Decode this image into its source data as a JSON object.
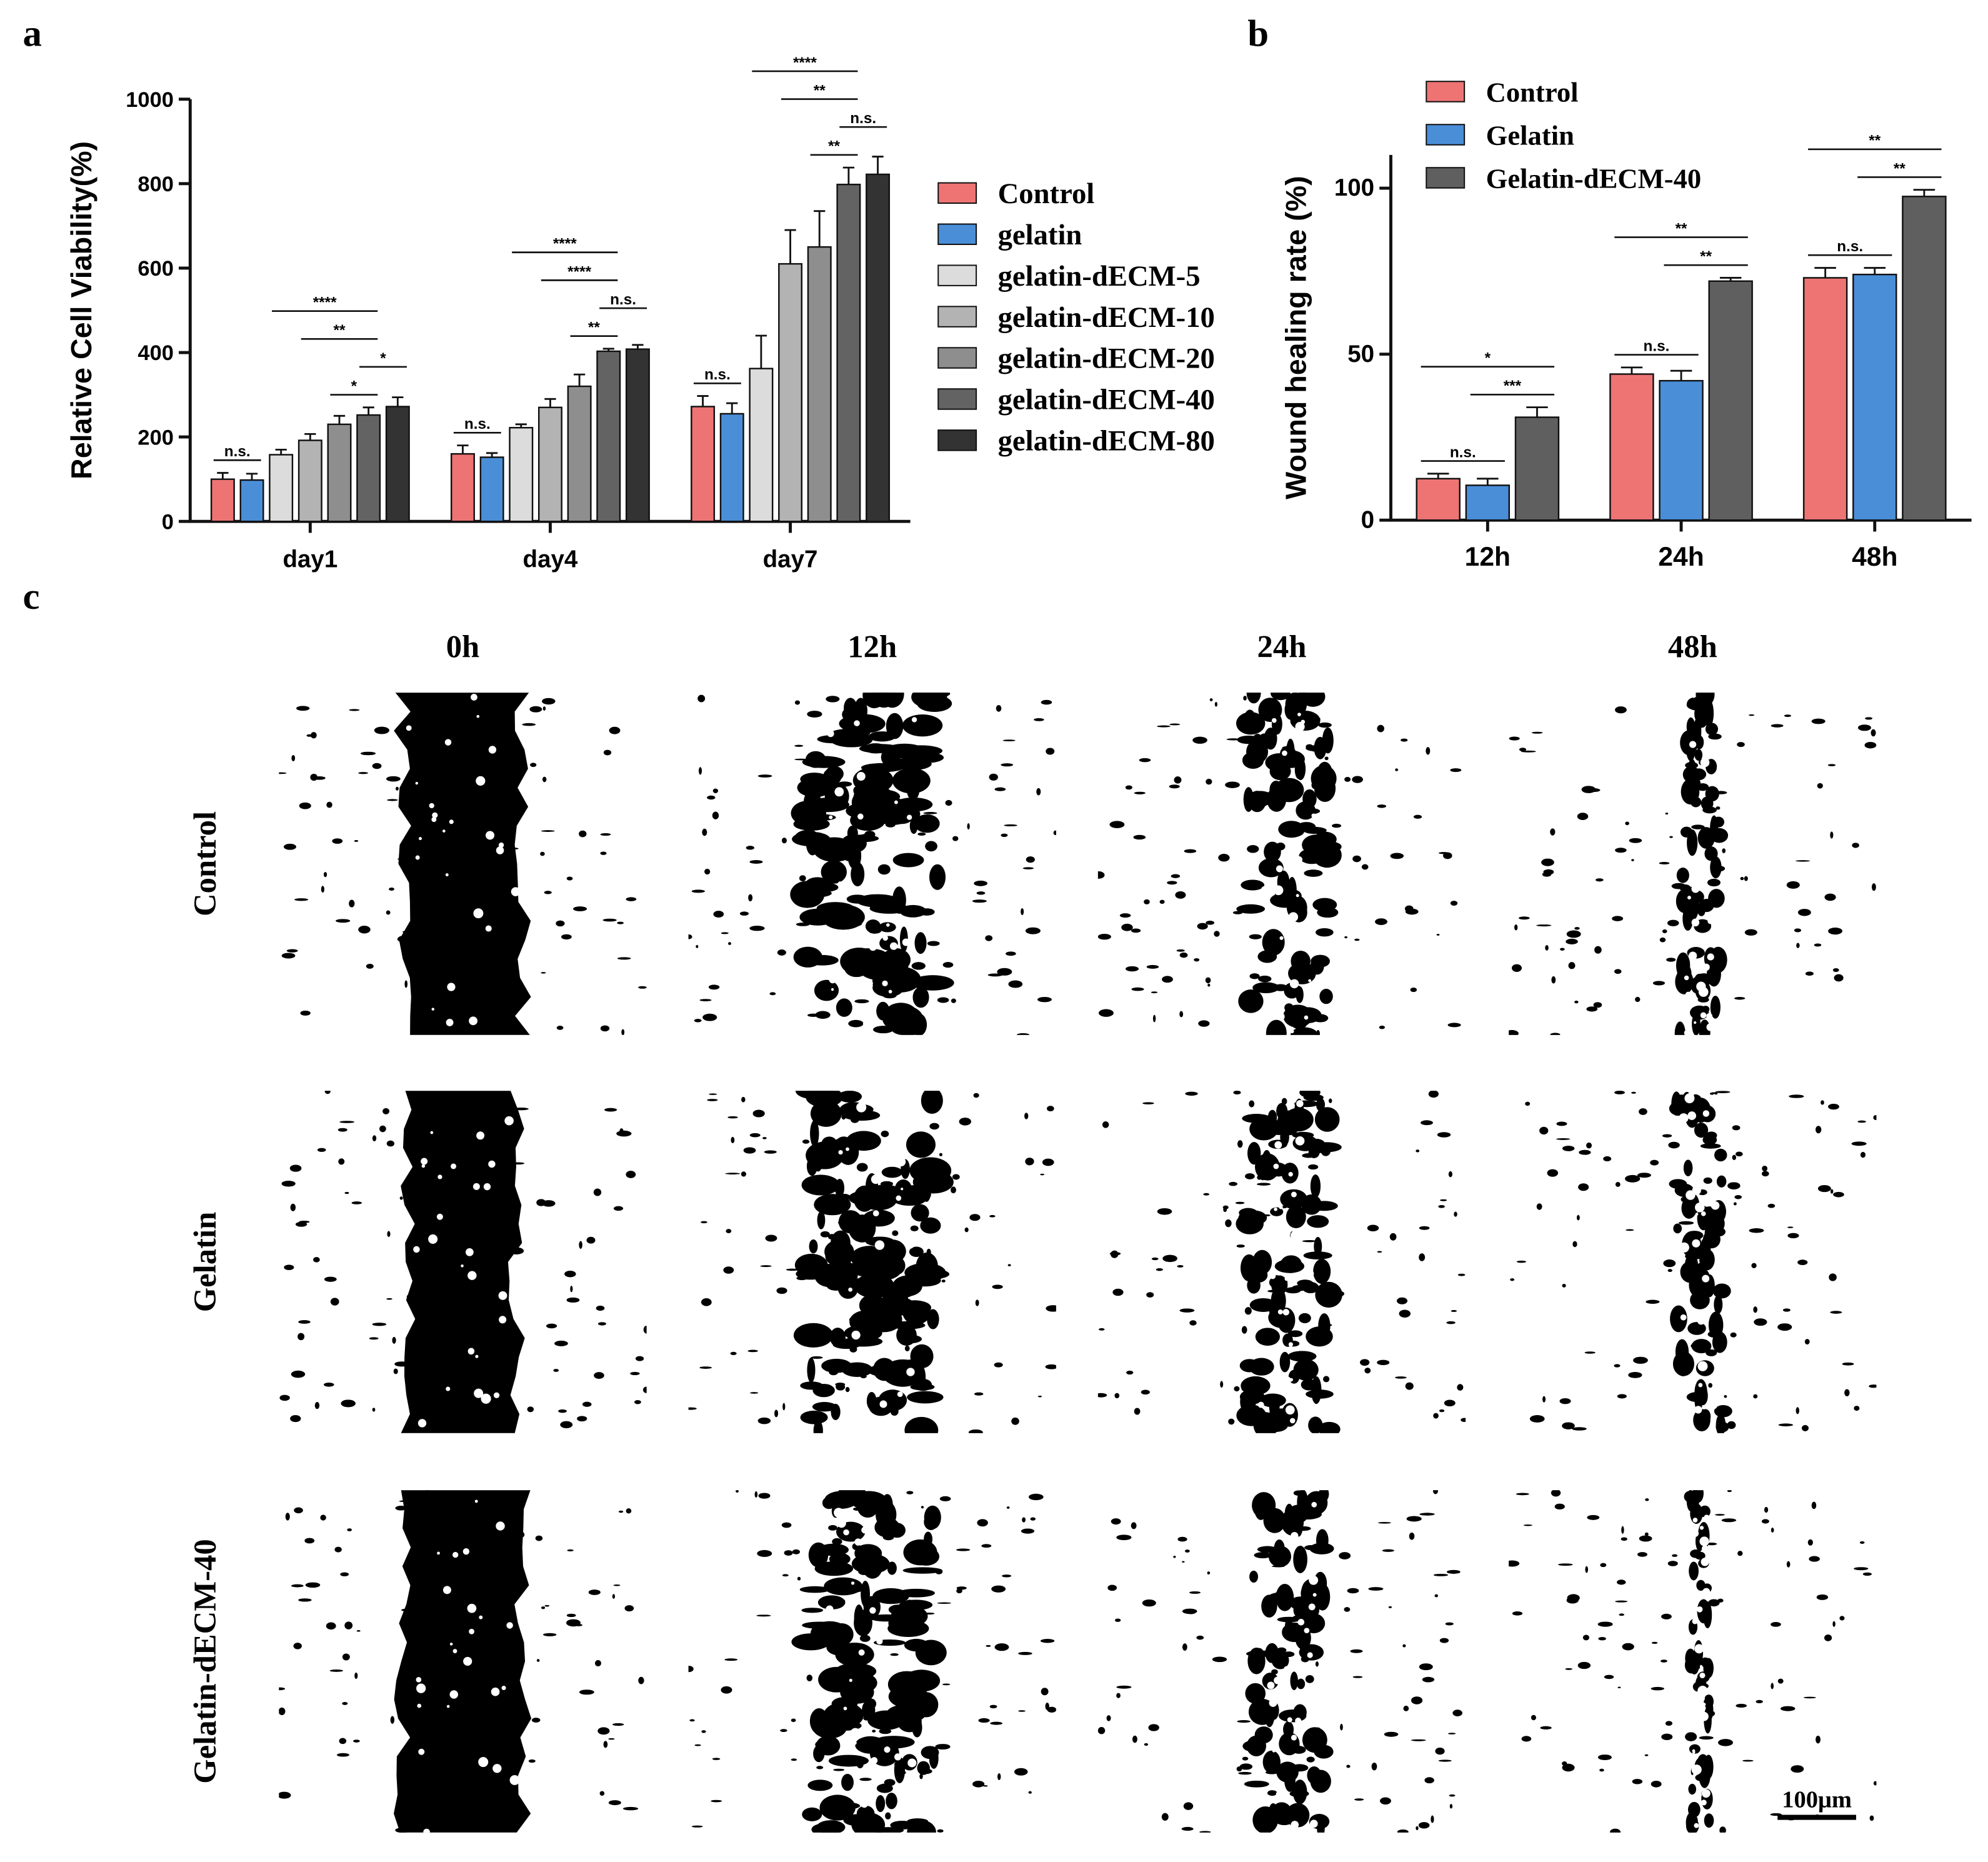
{
  "chart_data": [
    {
      "type": "bar",
      "y_label": "Relative Cell Viability(%)",
      "categories": [
        "day1",
        "day4",
        "day7"
      ],
      "series": [
        {
          "name": "Control",
          "color": "#ee7474",
          "values": [
            100,
            160,
            272
          ],
          "errors": [
            15,
            20,
            25
          ]
        },
        {
          "name": "gelatin",
          "color": "#4a8ed8",
          "values": [
            98,
            152,
            255
          ],
          "errors": [
            15,
            10,
            25
          ]
        },
        {
          "name": "gelatin-dECM-5",
          "color": "#dcdcdc",
          "values": [
            158,
            222,
            362
          ],
          "errors": [
            12,
            8,
            78
          ]
        },
        {
          "name": "gelatin-dECM-10",
          "color": "#b3b3b3",
          "values": [
            192,
            270,
            610
          ],
          "errors": [
            15,
            20,
            80
          ]
        },
        {
          "name": "gelatin-dECM-20",
          "color": "#8e8e8e",
          "values": [
            230,
            320,
            650
          ],
          "errors": [
            20,
            28,
            85
          ]
        },
        {
          "name": "gelatin-dECM-40",
          "color": "#636363",
          "values": [
            252,
            403,
            798
          ],
          "errors": [
            18,
            6,
            40
          ]
        },
        {
          "name": "gelatin-dECM-80",
          "color": "#333333",
          "values": [
            272,
            408,
            822
          ],
          "errors": [
            22,
            10,
            42
          ]
        }
      ],
      "annotations": [
        [
          "n.s.",
          "****",
          "**",
          "*",
          "*"
        ],
        [
          "n.s.",
          "****",
          "****",
          "**",
          "n.s."
        ],
        [
          "n.s.",
          "****",
          "**",
          "**",
          "n.s."
        ]
      ],
      "ylim": [
        0,
        1000
      ],
      "yticks": [
        0,
        200,
        400,
        600,
        800,
        1000
      ],
      "legend": "right"
    },
    {
      "type": "bar",
      "y_label": "Wound healing rate (%)",
      "categories": [
        "12h",
        "24h",
        "48h"
      ],
      "series": [
        {
          "name": "Control",
          "color": "#ee7474",
          "values": [
            12.5,
            44,
            73
          ],
          "errors": [
            1.5,
            2,
            3
          ]
        },
        {
          "name": "Gelatin",
          "color": "#4a8ed8",
          "values": [
            10.5,
            42,
            74
          ],
          "errors": [
            2,
            3,
            2
          ]
        },
        {
          "name": "Gelatin-dECM-40",
          "color": "#5f5f5f",
          "values": [
            31,
            72,
            97.5
          ],
          "errors": [
            3,
            1,
            2
          ]
        }
      ],
      "annotations": [
        [
          "n.s.",
          "*",
          "***"
        ],
        [
          "n.s.",
          "**",
          "**"
        ],
        [
          "n.s.",
          "**",
          "**"
        ]
      ],
      "ylim": [
        0,
        110
      ],
      "yticks": [
        0,
        50,
        100
      ],
      "legend": "top left"
    }
  ],
  "figure": {
    "panel_labels": [
      "a",
      "b",
      "c"
    ],
    "image_grid": {
      "columns": [
        "0h",
        "12h",
        "24h",
        "48h"
      ],
      "rows": [
        "Control",
        "Gelatin",
        "Gelatin-dECM-40"
      ],
      "scale_bar": "100μm"
    }
  }
}
